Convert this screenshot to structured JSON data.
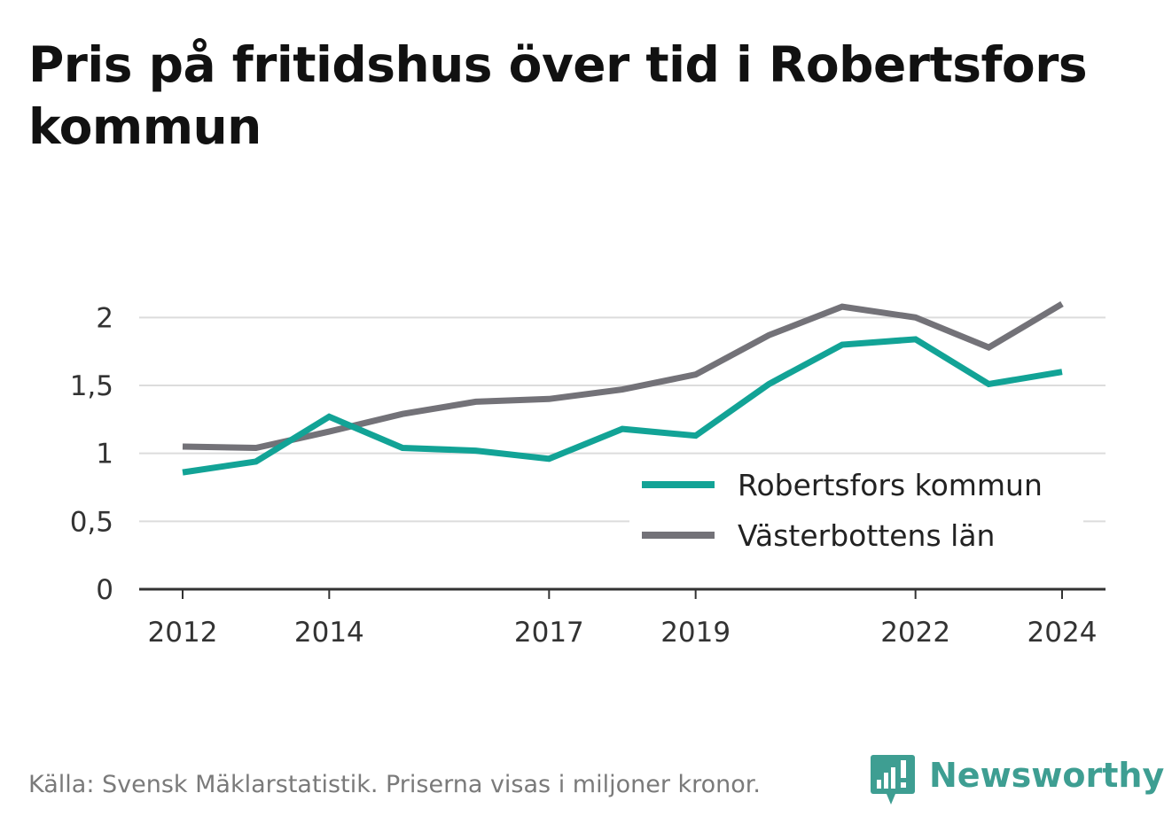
{
  "header": {
    "title": "Pris på fritidshus över tid i Robertsfors kommun"
  },
  "footer": {
    "source": "Källa: Svensk Mäklarstatistik. Priserna visas i miljoner kronor."
  },
  "brand": {
    "name": "Newsworthy",
    "color": "#3e9e92"
  },
  "chart_data": {
    "type": "line",
    "title": "Pris på fritidshus över tid i Robertsfors kommun",
    "xlabel": "",
    "ylabel": "",
    "x": [
      2012,
      2013,
      2014,
      2015,
      2016,
      2017,
      2018,
      2019,
      2020,
      2021,
      2022,
      2023,
      2024
    ],
    "x_ticks": [
      "2012",
      "2014",
      "2017",
      "2019",
      "2022",
      "2024"
    ],
    "x_tick_values": [
      2012,
      2014,
      2017,
      2019,
      2022,
      2024
    ],
    "ylim": [
      0,
      2.25
    ],
    "y_ticks": [
      "0",
      "0,5",
      "1",
      "1,5",
      "2"
    ],
    "y_tick_values": [
      0,
      0.5,
      1,
      1.5,
      2
    ],
    "grid": true,
    "legend_position": "bottom-right",
    "series": [
      {
        "name": "Robertsfors kommun",
        "color": "#12a396",
        "values": [
          0.86,
          0.94,
          1.27,
          1.04,
          1.02,
          0.96,
          1.18,
          1.13,
          1.51,
          1.8,
          1.84,
          1.51,
          1.6
        ]
      },
      {
        "name": "Västerbottens län",
        "color": "#737278",
        "values": [
          1.05,
          1.04,
          1.16,
          1.29,
          1.38,
          1.4,
          1.47,
          1.58,
          1.87,
          2.08,
          2.0,
          1.78,
          2.1
        ]
      }
    ]
  }
}
